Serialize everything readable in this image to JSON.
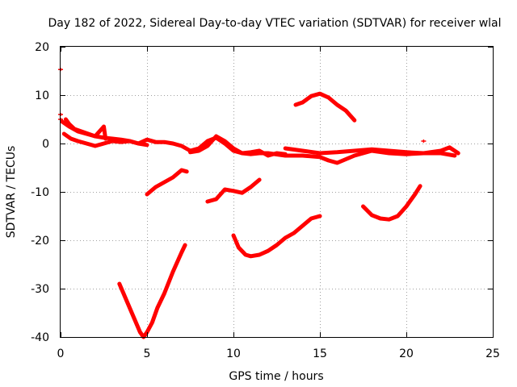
{
  "chart_data": {
    "type": "line",
    "title": "Day 182 of 2022, Sidereal Day-to-day VTEC variation (SDTVAR) for receiver wlal",
    "xlabel": "GPS time / hours",
    "ylabel": "SDTVAR / TECUs",
    "xlim": [
      0,
      25
    ],
    "ylim": [
      -40,
      20
    ],
    "xticks": [
      0,
      5,
      10,
      15,
      20,
      25
    ],
    "yticks": [
      -40,
      -30,
      -20,
      -10,
      0,
      10,
      20
    ],
    "xtick_labels": [
      "0",
      "5",
      "10",
      "15",
      "20",
      "25"
    ],
    "ytick_labels": [
      "-40",
      "-30",
      "-20",
      "-10",
      "0",
      "10",
      "20"
    ],
    "grid": true,
    "color": "#ff0000",
    "series": [
      {
        "name": "arc-near-zero-1",
        "x": [
          0.2,
          0.6,
          1.0,
          1.5,
          2.0,
          2.5,
          3.0,
          3.5,
          4.0,
          4.5,
          5.0,
          5.5,
          6.0,
          6.5,
          7.0,
          7.5,
          8.0,
          8.5,
          9.0,
          9.5,
          10.0,
          10.5,
          11.0,
          11.5,
          12.0,
          12.5,
          13.0
        ],
        "y": [
          2.0,
          1.0,
          0.5,
          0,
          -0.5,
          0,
          0.5,
          0.3,
          0.5,
          0,
          0.8,
          0.3,
          0.3,
          0,
          -0.5,
          -1.5,
          -1.0,
          0.5,
          1.2,
          0,
          -1.5,
          -2.0,
          -1.8,
          -1.5,
          -2.5,
          -2.0,
          -2.2
        ]
      },
      {
        "name": "arc-near-zero-2",
        "x": [
          0.1,
          0.5,
          1.0,
          1.5,
          2.0,
          2.5,
          3.0,
          3.5,
          4.0,
          4.5,
          5.0
        ],
        "y": [
          4.5,
          3.5,
          2.5,
          2.0,
          1.5,
          1.2,
          1.0,
          0.8,
          0.5,
          0,
          -0.3
        ]
      },
      {
        "name": "arc-near-zero-3",
        "x": [
          7.5,
          8.0,
          8.5,
          9.0,
          9.5,
          10.0,
          10.5,
          11.0,
          11.5,
          12.0,
          13.0,
          14.0,
          15.0,
          15.5,
          16.0,
          17.0,
          18.0,
          19.0,
          20.0,
          21.0,
          22.0,
          22.8
        ],
        "y": [
          -1.8,
          -1.5,
          -0.5,
          1.5,
          0.5,
          -1.0,
          -2.0,
          -2.2,
          -2.0,
          -2.0,
          -2.5,
          -2.5,
          -2.8,
          -3.5,
          -4.0,
          -2.5,
          -1.5,
          -2.0,
          -2.2,
          -2.0,
          -2.0,
          -2.5
        ]
      },
      {
        "name": "arc-near-zero-4",
        "x": [
          13.0,
          14.0,
          15.0,
          16.0,
          17.0,
          18.0,
          19.0,
          20.0,
          21.0,
          22.0,
          22.5,
          23.0
        ],
        "y": [
          -1.0,
          -1.5,
          -2.0,
          -1.8,
          -1.5,
          -1.2,
          -1.5,
          -1.8,
          -2.0,
          -1.5,
          -0.8,
          -2.0
        ]
      },
      {
        "name": "arc-a",
        "x": [
          5.0,
          5.5,
          6.0,
          6.5,
          7.0,
          7.3
        ],
        "y": [
          -10.5,
          -9.0,
          -8.0,
          -7.0,
          -5.5,
          -5.8
        ]
      },
      {
        "name": "arc-b",
        "x": [
          3.4,
          3.7,
          4.0,
          4.3,
          4.6,
          4.8,
          5.0,
          5.3,
          5.6,
          6.0,
          6.5,
          7.0,
          7.2
        ],
        "y": [
          -29.0,
          -31.5,
          -34.0,
          -36.5,
          -39.0,
          -40.0,
          -39.0,
          -37.0,
          -34.0,
          -31.0,
          -26.5,
          -22.5,
          -21.0
        ]
      },
      {
        "name": "arc-c",
        "x": [
          8.5,
          9.0,
          9.5,
          10.0,
          10.5,
          11.0,
          11.5
        ],
        "y": [
          -12.0,
          -11.5,
          -9.5,
          -9.8,
          -10.2,
          -9.0,
          -7.5
        ]
      },
      {
        "name": "arc-d",
        "x": [
          10.0,
          10.3,
          10.7,
          11.0,
          11.5,
          12.0,
          12.5,
          13.0,
          13.5,
          14.0,
          14.5,
          15.0
        ],
        "y": [
          -19.0,
          -21.5,
          -23.0,
          -23.3,
          -23.0,
          -22.2,
          -21.0,
          -19.5,
          -18.5,
          -17.0,
          -15.5,
          -15.0
        ]
      },
      {
        "name": "arc-e",
        "x": [
          13.6,
          14.0,
          14.5,
          15.0,
          15.5,
          16.0,
          16.5,
          17.0
        ],
        "y": [
          8.0,
          8.5,
          9.8,
          10.3,
          9.5,
          8.0,
          6.8,
          4.8
        ]
      },
      {
        "name": "arc-f",
        "x": [
          17.5,
          18.0,
          18.5,
          19.0,
          19.5,
          20.0,
          20.5,
          20.8
        ],
        "y": [
          -13.0,
          -14.8,
          -15.5,
          -15.7,
          -15.0,
          -13.0,
          -10.5,
          -8.8
        ]
      },
      {
        "name": "spikes-early",
        "x": [
          0.3,
          0.5,
          0.8,
          1.2,
          1.6,
          2.0,
          2.5,
          2.6
        ],
        "y": [
          5.0,
          4.0,
          3.0,
          2.5,
          2.0,
          1.5,
          3.5,
          1.0
        ]
      }
    ],
    "isolated_points": [
      {
        "x": 0.0,
        "y": 15.3
      },
      {
        "x": 0.0,
        "y": 6.0
      },
      {
        "x": 0.0,
        "y": 5.0
      },
      {
        "x": 21.0,
        "y": 0.5
      }
    ]
  }
}
